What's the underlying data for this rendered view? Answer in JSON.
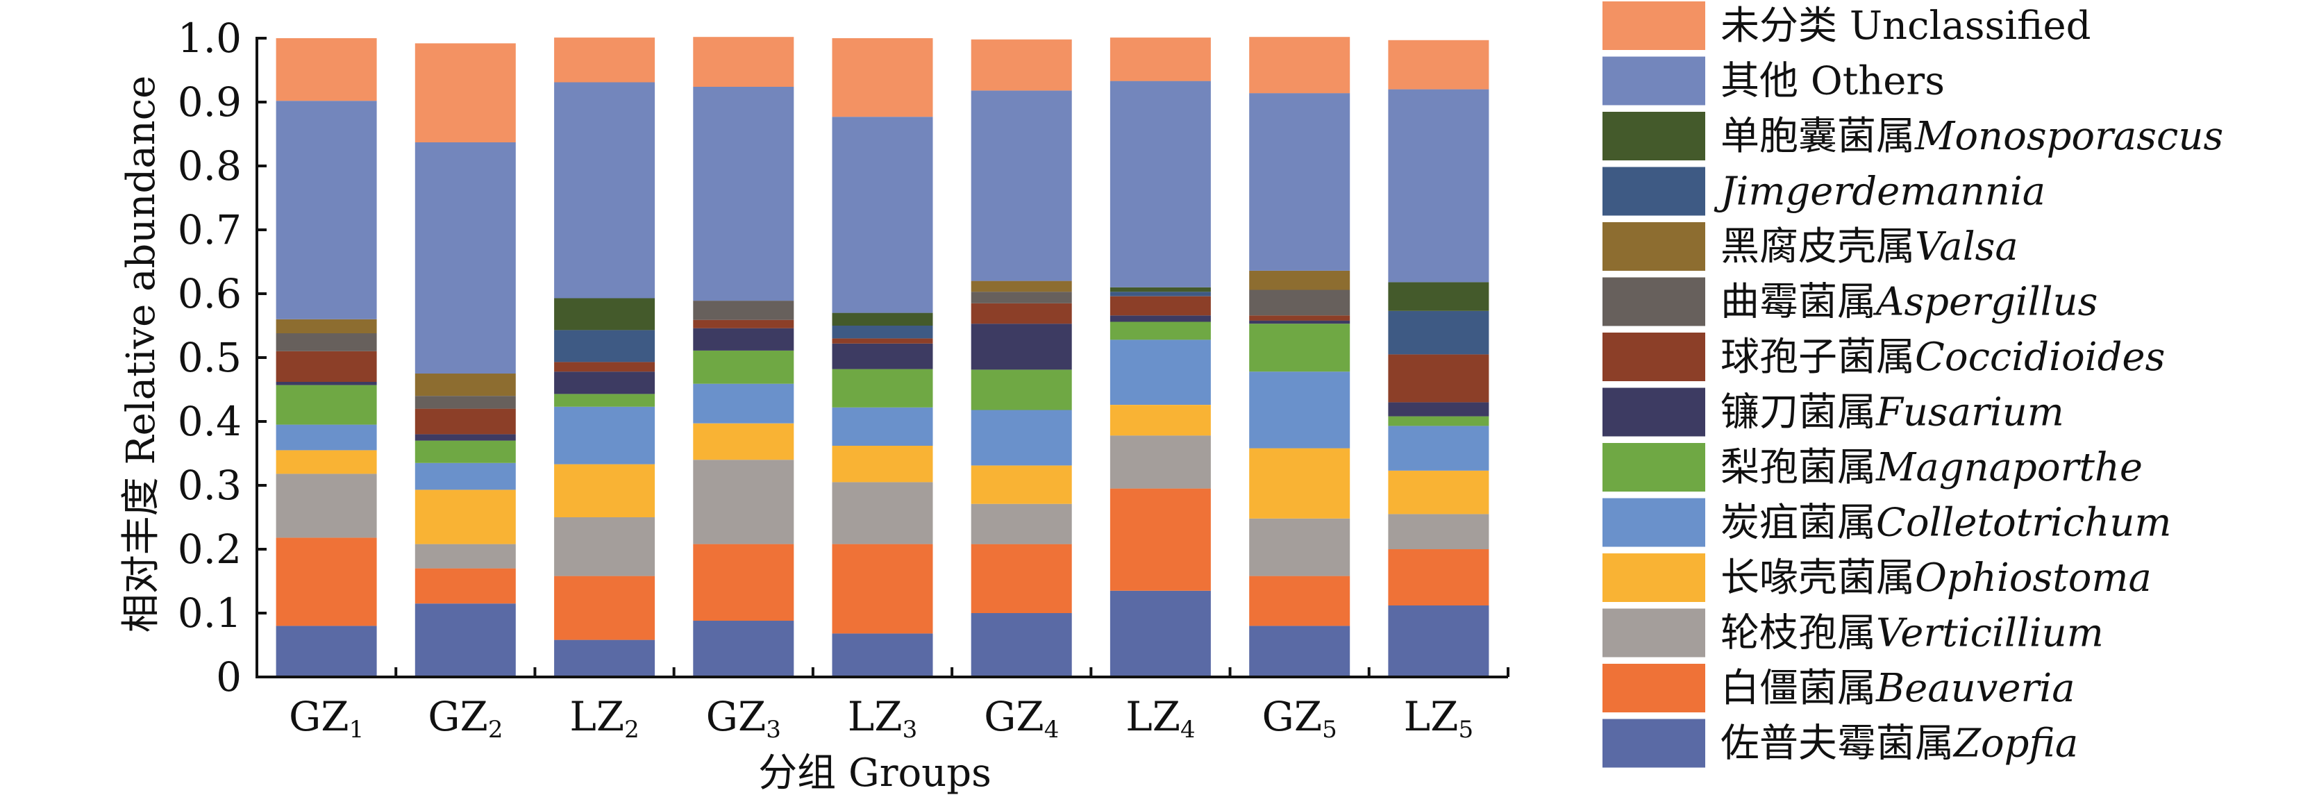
{
  "chart_data": {
    "type": "bar",
    "stacked": true,
    "xlabel": "分组 Groups",
    "ylabel": "相对丰度 Relative abundance",
    "ylim": [
      0,
      1.0
    ],
    "yticks": [
      "0",
      "0.1",
      "0.2",
      "0.3",
      "0.4",
      "0.5",
      "0.6",
      "0.7",
      "0.8",
      "0.9",
      "1.0"
    ],
    "categories": [
      {
        "base": "GZ",
        "sub": "1"
      },
      {
        "base": "GZ",
        "sub": "2"
      },
      {
        "base": "LZ",
        "sub": "2"
      },
      {
        "base": "GZ",
        "sub": "3"
      },
      {
        "base": "LZ",
        "sub": "3"
      },
      {
        "base": "GZ",
        "sub": "4"
      },
      {
        "base": "LZ",
        "sub": "4"
      },
      {
        "base": "GZ",
        "sub": "5"
      },
      {
        "base": "LZ",
        "sub": "5"
      }
    ],
    "series": [
      {
        "name_cn": "佐普夫霉菌属",
        "name_latin": "Zopfia",
        "italic": true,
        "color": "#5a6aa5",
        "values": [
          0.08,
          0.115,
          0.058,
          0.088,
          0.068,
          0.1,
          0.135,
          0.08,
          0.112
        ]
      },
      {
        "name_cn": "白僵菌属",
        "name_latin": "Beauveria",
        "italic": true,
        "color": "#ef7237",
        "values": [
          0.138,
          0.055,
          0.1,
          0.12,
          0.14,
          0.108,
          0.16,
          0.078,
          0.088
        ]
      },
      {
        "name_cn": "轮枝孢属",
        "name_latin": "Verticillium",
        "italic": true,
        "color": "#a49e9b",
        "values": [
          0.1,
          0.038,
          0.092,
          0.132,
          0.097,
          0.063,
          0.083,
          0.09,
          0.055
        ]
      },
      {
        "name_cn": "长喙壳菌属",
        "name_latin": "Ophiostoma",
        "italic": true,
        "color": "#f9b334",
        "values": [
          0.037,
          0.085,
          0.083,
          0.057,
          0.057,
          0.06,
          0.048,
          0.11,
          0.068
        ]
      },
      {
        "name_cn": "炭疽菌属",
        "name_latin": "Colletotrichum",
        "italic": true,
        "color": "#6a91cb",
        "values": [
          0.04,
          0.042,
          0.09,
          0.062,
          0.06,
          0.087,
          0.102,
          0.12,
          0.07
        ]
      },
      {
        "name_cn": "梨孢菌属",
        "name_latin": "Magnaporthe",
        "italic": true,
        "color": "#6fa844",
        "values": [
          0.062,
          0.035,
          0.02,
          0.052,
          0.06,
          0.063,
          0.028,
          0.075,
          0.015
        ]
      },
      {
        "name_cn": "镰刀菌属",
        "name_latin": "Fusarium",
        "italic": true,
        "color": "#3d3b62",
        "values": [
          0.005,
          0.01,
          0.035,
          0.035,
          0.04,
          0.072,
          0.01,
          0.005,
          0.022
        ]
      },
      {
        "name_cn": "球孢子菌属",
        "name_latin": "Coccidioides",
        "italic": true,
        "color": "#8c3f28",
        "values": [
          0.048,
          0.04,
          0.015,
          0.013,
          0.008,
          0.032,
          0.03,
          0.008,
          0.075
        ]
      },
      {
        "name_cn": "曲霉菌属",
        "name_latin": "Aspergillus",
        "italic": true,
        "color": "#67605c",
        "values": [
          0.028,
          0.02,
          0.0,
          0.03,
          0.0,
          0.018,
          0.0,
          0.04,
          0.0
        ]
      },
      {
        "name_cn": "黑腐皮壳属",
        "name_latin": "Valsa",
        "italic": true,
        "color": "#8d6d30",
        "values": [
          0.022,
          0.035,
          0.0,
          0.0,
          0.0,
          0.017,
          0.0,
          0.03,
          0.0
        ]
      },
      {
        "name_cn": "",
        "name_latin": "Jimgerdemannia",
        "italic": true,
        "color": "#3e5a84",
        "values": [
          0.0,
          0.0,
          0.05,
          0.0,
          0.02,
          0.0,
          0.007,
          0.0,
          0.068
        ]
      },
      {
        "name_cn": "单胞囊菌属",
        "name_latin": "Monosporascus",
        "italic": true,
        "color": "#445a2b",
        "values": [
          0.0,
          0.0,
          0.05,
          0.0,
          0.02,
          0.0,
          0.007,
          0.0,
          0.045
        ]
      },
      {
        "name_cn": "其他",
        "name_latin": "Others",
        "italic": false,
        "color": "#7386bc",
        "values": [
          0.342,
          0.362,
          0.338,
          0.335,
          0.307,
          0.298,
          0.323,
          0.278,
          0.302
        ]
      },
      {
        "name_cn": "未分类",
        "name_latin": "Unclassified",
        "italic": false,
        "color": "#f39263",
        "values": [
          0.098,
          0.155,
          0.07,
          0.078,
          0.123,
          0.08,
          0.068,
          0.088,
          0.077
        ]
      }
    ]
  }
}
